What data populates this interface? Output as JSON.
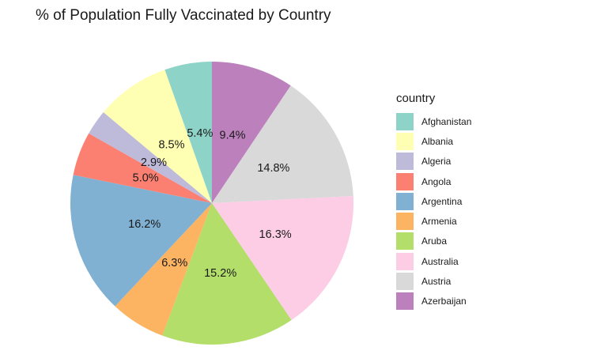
{
  "chart_data": {
    "type": "pie",
    "title": "% of Population Fully Vaccinated by Country",
    "legend_title": "country",
    "legend_position": "right",
    "start": "top",
    "direction": "clockwise",
    "slices": [
      {
        "label": "Azerbaijan",
        "value": 9.4,
        "text": "9.4%",
        "color": "#BC80BD"
      },
      {
        "label": "Austria",
        "value": 14.8,
        "text": "14.8%",
        "color": "#D9D9D9"
      },
      {
        "label": "Australia",
        "value": 16.3,
        "text": "16.3%",
        "color": "#FCCDE5"
      },
      {
        "label": "Aruba",
        "value": 15.2,
        "text": "15.2%",
        "color": "#B3DE69"
      },
      {
        "label": "Armenia",
        "value": 6.3,
        "text": "6.3%",
        "color": "#FDB462"
      },
      {
        "label": "Argentina",
        "value": 16.2,
        "text": "16.2%",
        "color": "#80B1D3"
      },
      {
        "label": "Angola",
        "value": 5.0,
        "text": "5.0%",
        "color": "#FB8072"
      },
      {
        "label": "Algeria",
        "value": 2.9,
        "text": "2.9%",
        "color": "#BEBADA"
      },
      {
        "label": "Albania",
        "value": 8.5,
        "text": "8.5%",
        "color": "#FFFFB3"
      },
      {
        "label": "Afghanistan",
        "value": 5.4,
        "text": "5.4%",
        "color": "#8DD3C7"
      }
    ],
    "legend": [
      {
        "label": "Afghanistan",
        "color": "#8DD3C7"
      },
      {
        "label": "Albania",
        "color": "#FFFFB3"
      },
      {
        "label": "Algeria",
        "color": "#BEBADA"
      },
      {
        "label": "Angola",
        "color": "#FB8072"
      },
      {
        "label": "Argentina",
        "color": "#80B1D3"
      },
      {
        "label": "Armenia",
        "color": "#FDB462"
      },
      {
        "label": "Aruba",
        "color": "#B3DE69"
      },
      {
        "label": "Australia",
        "color": "#FCCDE5"
      },
      {
        "label": "Austria",
        "color": "#D9D9D9"
      },
      {
        "label": "Azerbaijan",
        "color": "#BC80BD"
      }
    ]
  }
}
